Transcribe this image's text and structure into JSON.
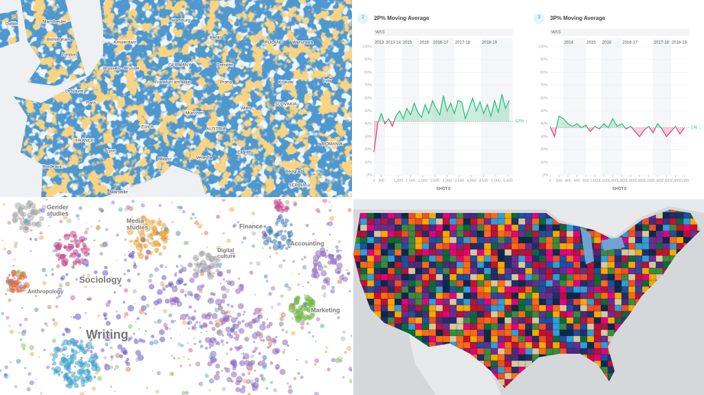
{
  "europe_map": {
    "labels": [
      "Dublin",
      "Manchester",
      "Birmingham",
      "London",
      "Amsterdam",
      "Hamburg",
      "Berlin",
      "POLAND",
      "Warszawa",
      "GERMANY",
      "Dresden",
      "Brussels - Brussel",
      "Frankfurt am Main",
      "Praha",
      "Le Havre",
      "Paris",
      "Krakow",
      "SLOVAKIA",
      "Lviv",
      "München",
      "Wien",
      "AUSTRIA",
      "Zürich",
      "FRANCE",
      "Lyon",
      "Milano",
      "Venezia",
      "Zagreb",
      "Bordeaux",
      "Marseille",
      "Beograd",
      "SERBIA",
      "ROMANIA"
    ]
  },
  "charts": [
    {
      "type": "line",
      "badge": "2",
      "title": "2P% Moving Average",
      "team": "WAS",
      "x_label": "SHOTS",
      "seasons": [
        {
          "value": 0,
          "label": "2013"
        },
        {
          "value": 450,
          "label": "2013-14"
        },
        {
          "value": 1150,
          "label": "2015"
        },
        {
          "value": 1850,
          "label": "2016"
        },
        {
          "value": 2400,
          "label": "2016-17"
        },
        {
          "value": 3300,
          "label": "2017-18"
        },
        {
          "value": 4400,
          "label": "2018-19"
        }
      ],
      "xlim": [
        0,
        5700
      ],
      "xticks": [
        0,
        300,
        {
          "value": 1000,
          "label": "1,000"
        },
        {
          "value": 1500,
          "label": "1,500"
        },
        {
          "value": 2000,
          "label": "2,000"
        },
        {
          "value": 2500,
          "label": "2,500"
        },
        {
          "value": 3000,
          "label": "3,000"
        },
        {
          "value": 3500,
          "label": "3,500"
        },
        {
          "value": 4000,
          "label": "4,000"
        },
        {
          "value": 4500,
          "label": "4,500"
        },
        {
          "value": 5000,
          "label": "5,000"
        },
        {
          "value": 5500,
          "label": "5,500"
        }
      ],
      "ylim": [
        0,
        100
      ],
      "yticks": [
        {
          "value": 0,
          "label": "0%"
        },
        {
          "value": 10,
          "label": "10%"
        },
        {
          "value": 20,
          "label": "20%"
        },
        {
          "value": 30,
          "label": "30%"
        },
        {
          "value": 40,
          "label": "40%"
        },
        {
          "value": 50,
          "label": "50%"
        },
        {
          "value": 60,
          "label": "60%"
        },
        {
          "value": 70,
          "label": "70%"
        },
        {
          "value": 80,
          "label": "80%"
        },
        {
          "value": 90,
          "label": "90%"
        },
        {
          "value": 100,
          "label": "100%"
        }
      ],
      "baseline": 42,
      "above_color": "#2ebd85",
      "below_color": "#e0457b",
      "x": [
        0,
        150,
        300,
        450,
        600,
        750,
        900,
        1050,
        1200,
        1350,
        1500,
        1650,
        1800,
        1950,
        2100,
        2250,
        2400,
        2550,
        2700,
        2850,
        3000,
        3150,
        3300,
        3450,
        3600,
        3750,
        3900,
        4050,
        4200,
        4350,
        4500,
        4650,
        4800,
        4950,
        5100,
        5250,
        5400,
        5550
      ],
      "values": [
        18,
        40,
        48,
        40,
        44,
        38,
        46,
        50,
        44,
        52,
        47,
        56,
        49,
        45,
        55,
        48,
        58,
        52,
        47,
        62,
        50,
        56,
        48,
        58,
        57,
        44,
        52,
        60,
        50,
        57,
        48,
        55,
        46,
        58,
        49,
        63,
        52,
        58
      ],
      "end_label": "12% ↑"
    },
    {
      "type": "line",
      "badge": "3",
      "title": "3P% Moving Average",
      "team": "WAS",
      "x_label": "SHOTS",
      "seasons": [
        {
          "value": 300,
          "label": "2014"
        },
        {
          "value": 800,
          "label": "2015"
        },
        {
          "value": 1150,
          "label": "2016"
        },
        {
          "value": 1600,
          "label": "2016-17"
        },
        {
          "value": 2300,
          "label": "2017-18"
        },
        {
          "value": 2700,
          "label": "2018-19"
        }
      ],
      "xlim": [
        0,
        3100
      ],
      "xticks": [
        0,
        200,
        400,
        600,
        800,
        {
          "value": 1000,
          "label": "1,000"
        },
        {
          "value": 1200,
          "label": "1,200"
        },
        {
          "value": 1400,
          "label": "1,400"
        },
        {
          "value": 1600,
          "label": "1,600"
        },
        {
          "value": 1800,
          "label": "1,800"
        },
        {
          "value": 2000,
          "label": "2,000"
        },
        {
          "value": 2200,
          "label": "2,200"
        },
        {
          "value": 2400,
          "label": "2,400"
        },
        {
          "value": 2600,
          "label": "2,600"
        },
        {
          "value": 2800,
          "label": "2,800"
        },
        {
          "value": 3000,
          "label": "3,000"
        }
      ],
      "ylim": [
        0,
        100
      ],
      "yticks": [
        {
          "value": 0,
          "label": "0%"
        },
        {
          "value": 10,
          "label": "10%"
        },
        {
          "value": 20,
          "label": "20%"
        },
        {
          "value": 30,
          "label": "30%"
        },
        {
          "value": 40,
          "label": "40%"
        },
        {
          "value": 50,
          "label": "50%"
        },
        {
          "value": 60,
          "label": "60%"
        },
        {
          "value": 70,
          "label": "70%"
        },
        {
          "value": 80,
          "label": "80%"
        },
        {
          "value": 90,
          "label": "90%"
        },
        {
          "value": 100,
          "label": "100%"
        }
      ],
      "baseline": 37,
      "above_color": "#2ebd85",
      "below_color": "#e0457b",
      "x": [
        0,
        100,
        200,
        300,
        400,
        500,
        600,
        700,
        800,
        900,
        1000,
        1100,
        1200,
        1300,
        1400,
        1500,
        1600,
        1700,
        1800,
        1900,
        2000,
        2100,
        2200,
        2300,
        2400,
        2500,
        2600,
        2700,
        2800,
        2900,
        3000
      ],
      "values": [
        38,
        30,
        46,
        44,
        40,
        38,
        40,
        37,
        39,
        34,
        38,
        36,
        40,
        37,
        44,
        38,
        40,
        36,
        38,
        34,
        30,
        35,
        38,
        33,
        40,
        36,
        30,
        34,
        38,
        32,
        37
      ],
      "end_label": "1% ↓"
    }
  ],
  "fields_map": {
    "labels": [
      [
        "Gender",
        "studies"
      ],
      [
        "Media",
        "studies"
      ],
      [
        "Finance"
      ],
      [
        "Digital",
        "culture"
      ],
      [
        "Accounting"
      ],
      [
        "Sociology"
      ],
      [
        "Anthropology"
      ],
      [
        "Marketing"
      ],
      [
        "Writing"
      ]
    ]
  }
}
